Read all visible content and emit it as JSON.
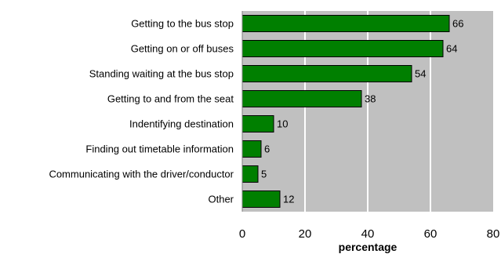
{
  "chart_data": {
    "type": "bar",
    "orientation": "horizontal",
    "title": "",
    "xlabel": "percentage",
    "ylabel": "",
    "categories": [
      "Getting to the bus stop",
      "Getting on or off buses",
      "Standing waiting at the bus stop",
      "Getting to and from the seat",
      "Indentifying destination",
      "Finding out timetable information",
      "Communicating with the driver/conductor",
      "Other"
    ],
    "values": [
      66,
      64,
      54,
      38,
      10,
      6,
      5,
      12
    ],
    "xlim": [
      0,
      80
    ],
    "xticks": [
      0,
      20,
      40,
      60,
      80
    ],
    "grid": "vertical",
    "legend": "none",
    "bar_color": "#007f00",
    "plot_background": "#c0c0c0",
    "grid_color": "#ffffff"
  }
}
